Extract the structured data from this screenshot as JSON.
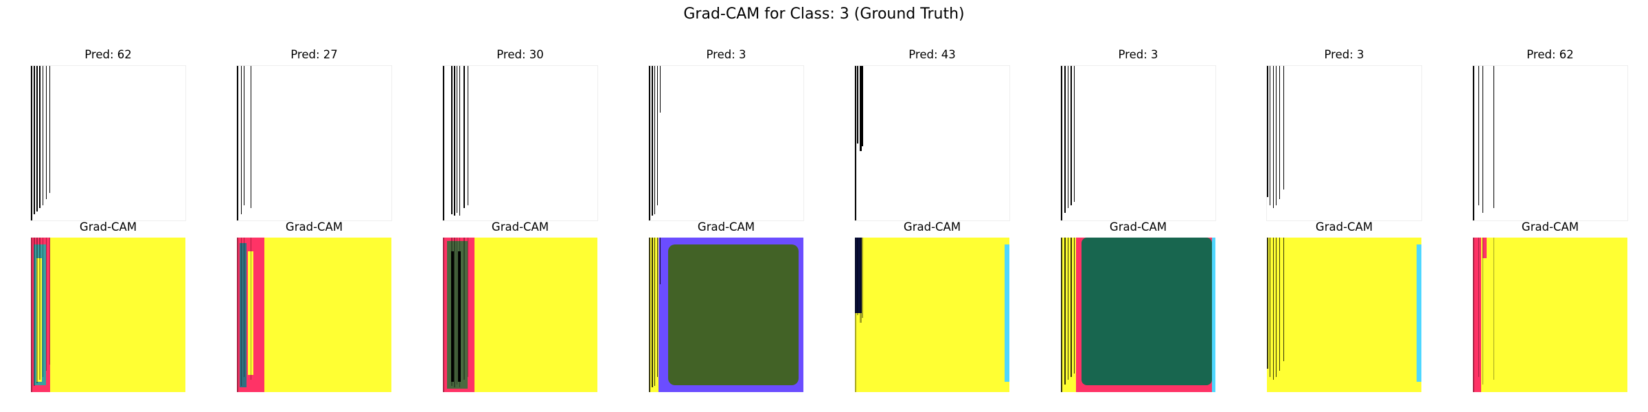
{
  "figure": {
    "title": "Grad-CAM for Class: 3 (Ground Truth)",
    "colors": {
      "background": "#ffffff",
      "cam_yellow": "#ffff33",
      "cam_pink": "#ff3366",
      "cam_green_dark": "#426226",
      "cam_teal": "#18664f",
      "cam_blue": "#6b4dff",
      "cam_cyan": "#4fd7ff",
      "cam_navy": "#0a1040",
      "stroke_black": "#000000"
    },
    "samples": [
      {
        "pred_label": "Pred: 62",
        "cam_label": "Grad-CAM"
      },
      {
        "pred_label": "Pred: 27",
        "cam_label": "Grad-CAM"
      },
      {
        "pred_label": "Pred: 30",
        "cam_label": "Grad-CAM"
      },
      {
        "pred_label": "Pred: 3",
        "cam_label": "Grad-CAM"
      },
      {
        "pred_label": "Pred: 43",
        "cam_label": "Grad-CAM"
      },
      {
        "pred_label": "Pred: 3",
        "cam_label": "Grad-CAM"
      },
      {
        "pred_label": "Pred: 3",
        "cam_label": "Grad-CAM"
      },
      {
        "pred_label": "Pred: 62",
        "cam_label": "Grad-CAM"
      }
    ]
  }
}
